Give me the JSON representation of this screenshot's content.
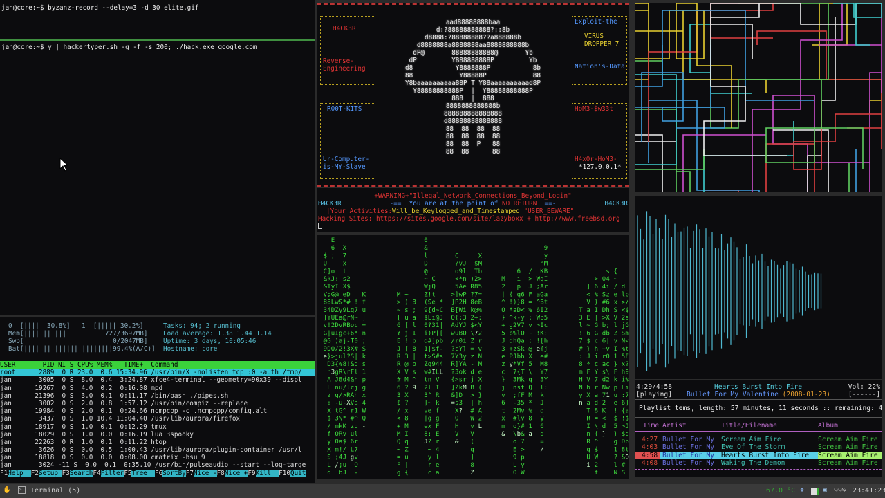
{
  "terminal_top": {
    "cmd1": "jan@core:~$ byzanz-record --delay=3 -d 30 elite.gif",
    "cmd2": "jan@core:~$ y | hackertyper.sh -g -f -s 200; ./hack.exe google.com"
  },
  "htop": {
    "cpu0": "0  [||||| 30.8%]",
    "cpu1": "1  [||||| 30.2%]",
    "mem": "Mem[|||||||||||          727/3697MB]",
    "swp": "Swp[                       0/2047MB]",
    "bat": "Bat[|||||||||||||||||||||||99.4%(A/C)]",
    "tasks": "Tasks: 94; 2 running",
    "load": "Load average: 1.38 1.44 1.14",
    "uptime": "Uptime: 3 days, 10:05:46",
    "hostname": "Hostname: core",
    "header": "USER       PID NI S CPU% MEM%   TIME+  Command",
    "rows": [
      "root      2889  0 R 23.0  0.6 15:34.96 /usr/bin/X -nolisten tcp :0 -auth /tmp/",
      "jan       3005  0 S  8.0  0.4  3:24.87 xfce4-terminal --geometry=90x39 --displ",
      "jan      19267  0 S  4.0  0.2  0:16.08 mpd",
      "jan      21396  0 S  3.0  0.1  0:11.17 /bin/bash ./pipes.sh",
      "jan       3002  0 S  2.0  0.8  1:57.12 /usr/bin/compiz --replace",
      "jan      19984  0 S  2.0  0.1  0:24.66 ncmpcpp -c .ncmpcpp/config.alt",
      "jan       3437  0 S  1.0 10.4 11:04.40 /usr/lib/aurora/firefox",
      "jan      18917  0 S  1.0  0.1  0:12.29 tmux",
      "jan      18029  0 S  1.0  0.0  0:16.19 lua 3spooky",
      "jan      22263  0 R  1.0  0.1  0:11.22 htop",
      "jan       3626  0 S  0.0  0.5  1:00.43 /usr/lib/aurora/plugin-container /usr/l",
      "jan      18818  0 S  0.0  0.0  0:08.00 cmatrix -bsu 9",
      "jan       3024 -11 S  0.0  0.1  0:35.10 /usr/bin/pulseaudio --start --log-targe"
    ],
    "fkeys": [
      [
        "F1",
        "Help  "
      ],
      [
        "F2",
        "Setup "
      ],
      [
        "F3",
        "Search"
      ],
      [
        "F4",
        "Filter"
      ],
      [
        "F5",
        "Tree  "
      ],
      [
        "F6",
        "SortBy"
      ],
      [
        "F7",
        "Nice -"
      ],
      [
        "F8",
        "Nice +"
      ],
      [
        "F9",
        "Kill  "
      ],
      [
        "F10",
        "Quit"
      ]
    ]
  },
  "art": {
    "skull": [
      "aad88888888baa",
      "d:?88888888888?::8b",
      "d8888:?88888888??a888888b",
      "d8888888a8888888aa8888888888b",
      "dP@       88888888888@       Yb",
      "dP         Y888888888P         Yb",
      "d8           Y8888888P           8b",
      "88            Y88888P            88",
      "Y8baaaaaaaaaa88P T Y88aaaaaaaaaad8P",
      "Y88888888888P  |  Y88888888888P",
      "888  |  888",
      "8888888888888b",
      "888888888888888",
      "d88888888888888",
      "88  88  88  88",
      "88  88  88  88",
      "88  88  P   88",
      "88  88      88"
    ],
    "box_tl": {
      "title": "H4CK3R",
      "l1": "Reverse-",
      "l2": "Engineering"
    },
    "box_bl": {
      "title": "R00T-KITS",
      "l1": "Ur-Computer-",
      "l2": "is-MY-Slave"
    },
    "box_tr": {
      "title": "Exploit-the",
      "l1": "VIRUS",
      "l2": "DROPPER 7",
      "l3": "Nation's-Data"
    },
    "box_br": {
      "title": "HoM3-$w33t",
      "l1": "H4x0r-HoM3-",
      "l2": "*127.0.0.1*"
    }
  },
  "banner": {
    "warning": "+WARNING+\"Illegal_Network_Connections_Beyond_Login\"",
    "tag": "H4CK3R",
    "line2": "-==  You are at the point of ",
    "noreturn": "NO RETURN",
    "line2end": "  ==-",
    "line3a": "|Your Activities:",
    "line3b": "Will_be_Keylogged_and_Timestamped",
    "line3c": " \"USER_BEWARE\"",
    "sites": "Hacking Sites: https://sites.google.com/site/lazyboxx + http://www.freebsd.org"
  },
  "ncmpcpp": {
    "elapsed": "4:29/4:58",
    "state": "[playing]",
    "title": "Hearts Burst Into Fire",
    "artist_line": "Bullet For My Valentine",
    "date": "(2008-01-23)",
    "volume": "Vol: 22%",
    "vol_bar": "[------]",
    "playlist_info": "Playlist tems, length: 57 minutes, 11 seconds :: remaining: 4",
    "columns": [
      "Time",
      "Artist",
      "Title/Filename",
      "Album"
    ],
    "tracks": [
      {
        "time": "4:27",
        "artist": "Bullet For My",
        "title": "Scream Aim Fire",
        "album": "Scream Aim Fire"
      },
      {
        "time": "4:03",
        "artist": "Bullet For My",
        "title": "Eye Of The Storm",
        "album": "Scream Aim Fire"
      },
      {
        "time": "4:58",
        "artist": "Bullet For My",
        "title": "Hearts Burst Into Fire",
        "album": "Scream Aim Fire",
        "playing": true
      },
      {
        "time": "4:08",
        "artist": "Bullet For My",
        "title": "Waking The Demon",
        "album": "Scream Aim Fire"
      }
    ]
  },
  "taskbar": {
    "task": "Terminal (5)",
    "temp": "67.0 °C",
    "battery": "99%",
    "clock": "23:41:23"
  },
  "colors": {
    "htop_header": "#3bd23b",
    "htop_selected": "#33c5d5",
    "matrix": "#3ddc3d",
    "viz": "#4fb8d0",
    "accent_red": "#d63a2a"
  }
}
